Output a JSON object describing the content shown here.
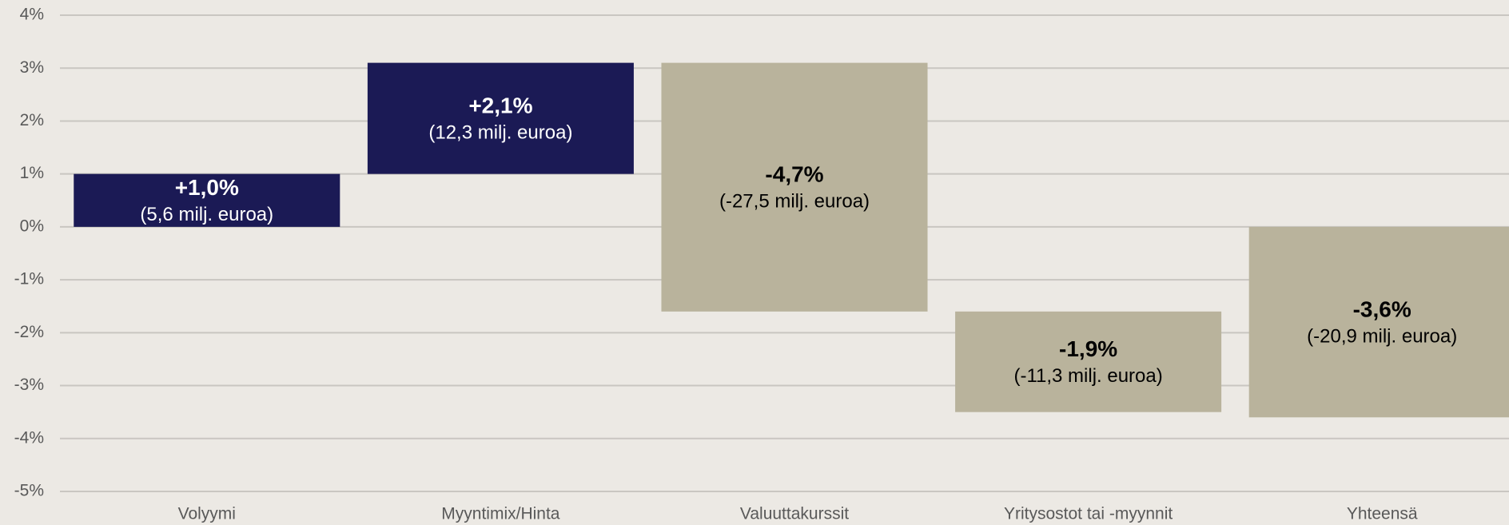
{
  "chart_data": {
    "type": "waterfall",
    "categories": [
      "Volyymi",
      "Myyntimix/Hinta",
      "Valuuttakurssit",
      "Yritysostot tai -myynnit",
      "Yhteensä"
    ],
    "values": [
      1.0,
      2.1,
      -4.7,
      -1.9,
      -3.6
    ],
    "value_labels": [
      "+1,0%",
      "+2,1%",
      "-4,7%",
      "-1,9%",
      "-3,6%"
    ],
    "amount_labels": [
      "(5,6 milj. euroa)",
      "(12,3 milj. euroa)",
      "(-27,5 milj. euroa)",
      "(-11,3 milj. euroa)",
      "(-20,9 milj. euroa)"
    ],
    "totals": [
      false,
      false,
      false,
      false,
      true
    ],
    "colors": {
      "increase": "#1b1a55",
      "decrease": "#b9b39c"
    },
    "ylim": [
      -5,
      4
    ],
    "yticks": [
      {
        "value": -5,
        "label": "-5%"
      },
      {
        "value": -4,
        "label": "-4%"
      },
      {
        "value": -3,
        "label": "-3%"
      },
      {
        "value": -2,
        "label": "-2%"
      },
      {
        "value": -1,
        "label": "-1%"
      },
      {
        "value": 0,
        "label": "0%"
      },
      {
        "value": 1,
        "label": "1%"
      },
      {
        "value": 2,
        "label": "2%"
      },
      {
        "value": 3,
        "label": "3%"
      },
      {
        "value": 4,
        "label": "4%"
      }
    ],
    "grid": true
  }
}
